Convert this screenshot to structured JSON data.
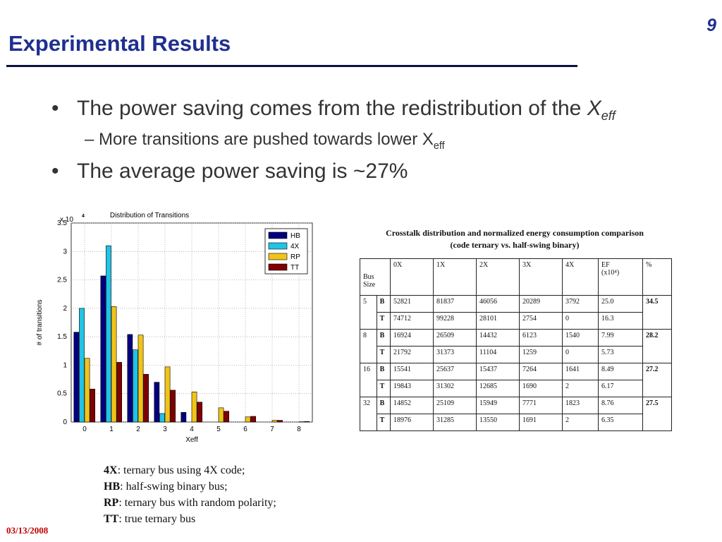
{
  "slide": {
    "title": "Experimental Results",
    "number": "9",
    "date": "03/13/2008"
  },
  "bullets": [
    {
      "text": "The power saving comes from the redistribution of the ",
      "var": "X",
      "sub": "eff"
    },
    {
      "text": "The average power saving is ~27%"
    }
  ],
  "sub_bullet": {
    "dash": "–",
    "text": "More transitions are pushed towards lower X",
    "sub": "eff"
  },
  "bullet_symbol": "•",
  "chart_data": {
    "type": "bar",
    "title": "Distribution of Transitions",
    "xlabel": "Xeff",
    "ylabel": "# of transitions",
    "y_multiplier": "x 10",
    "y_exponent": "4",
    "categories": [
      "0",
      "1",
      "2",
      "3",
      "4",
      "5",
      "6",
      "7",
      "8"
    ],
    "ylim": [
      0,
      3.5
    ],
    "yticks": [
      "0",
      "0.5",
      "1",
      "1.5",
      "2",
      "2.5",
      "3",
      "3.5"
    ],
    "grid": true,
    "legend_position": "top-right",
    "series": [
      {
        "name": "HB",
        "color": "#00007f",
        "values": [
          1.58,
          2.57,
          1.54,
          0.7,
          0.17,
          0,
          0,
          0,
          0
        ]
      },
      {
        "name": "4X",
        "color": "#21c3e6",
        "values": [
          2.0,
          3.1,
          1.27,
          0.15,
          0,
          0,
          0,
          0,
          0
        ]
      },
      {
        "name": "RP",
        "color": "#f0c419",
        "values": [
          1.12,
          2.03,
          1.53,
          0.97,
          0.53,
          0.25,
          0.09,
          0.03,
          0.005
        ]
      },
      {
        "name": "TT",
        "color": "#7f0000",
        "values": [
          0.58,
          1.05,
          0.84,
          0.56,
          0.35,
          0.19,
          0.1,
          0.03,
          0.01
        ]
      }
    ]
  },
  "table": {
    "caption_line1": "Crosstalk distribution and normalized energy consumption comparison",
    "caption_line2": "(code ternary vs. half-swing binary)",
    "header": {
      "bus_size": "Bus Size",
      "c0": "0X",
      "c1": "1X",
      "c2": "2X",
      "c3": "3X",
      "c4": "4X",
      "ef": "EF",
      "ef_unit": "(x10⁴)",
      "pct": "%"
    },
    "groups": [
      {
        "size": "5",
        "pct": "34.5",
        "rows": [
          {
            "code": "B",
            "v": [
              "52821",
              "81837",
              "46056",
              "20289",
              "3792",
              "25.0"
            ]
          },
          {
            "code": "T",
            "v": [
              "74712",
              "99228",
              "28101",
              "2754",
              "0",
              "16.3"
            ]
          }
        ]
      },
      {
        "size": "8",
        "pct": "28.2",
        "rows": [
          {
            "code": "B",
            "v": [
              "16924",
              "26509",
              "14432",
              "6123",
              "1540",
              "7.99"
            ]
          },
          {
            "code": "T",
            "v": [
              "21792",
              "31373",
              "11104",
              "1259",
              "0",
              "5.73"
            ]
          }
        ]
      },
      {
        "size": "16",
        "pct": "27.2",
        "rows": [
          {
            "code": "B",
            "v": [
              "15541",
              "25637",
              "15437",
              "7264",
              "1641",
              "8.49"
            ]
          },
          {
            "code": "T",
            "v": [
              "19843",
              "31302",
              "12685",
              "1690",
              "2",
              "6.17"
            ]
          }
        ]
      },
      {
        "size": "32",
        "pct": "27.5",
        "rows": [
          {
            "code": "B",
            "v": [
              "14852",
              "25109",
              "15949",
              "7771",
              "1823",
              "8.76"
            ]
          },
          {
            "code": "T",
            "v": [
              "18976",
              "31285",
              "13550",
              "1691",
              "2",
              "6.35"
            ]
          }
        ]
      }
    ]
  },
  "legend_notes": [
    {
      "key": "4X",
      "desc": ": ternary bus using 4X code;"
    },
    {
      "key": "HB",
      "desc": ": half-swing binary bus;"
    },
    {
      "key": "RP",
      "desc": ": ternary bus with random polarity;"
    },
    {
      "key": "TT",
      "desc": ": true ternary bus"
    }
  ]
}
